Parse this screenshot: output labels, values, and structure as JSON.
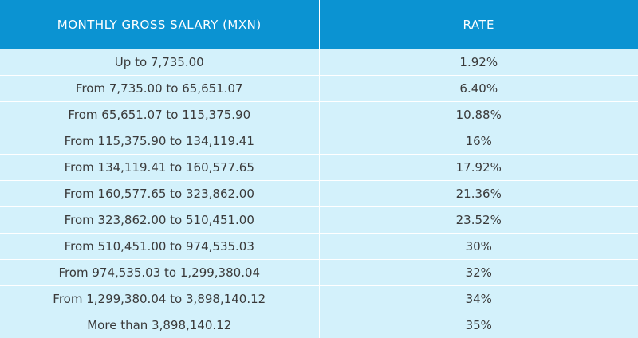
{
  "table": {
    "header": [
      "MONTHLY GROSS SALARY (MXN)",
      "RATE"
    ],
    "rows": [
      [
        "Up to 7,735.00",
        "1.92%"
      ],
      [
        "From 7,735.00 to 65,651.07",
        "6.40%"
      ],
      [
        "From 65,651.07 to 115,375.90",
        "10.88%"
      ],
      [
        "From 115,375.90 to 134,119.41",
        "16%"
      ],
      [
        "From 134,119.41 to 160,577.65",
        "17.92%"
      ],
      [
        "From 160,577.65 to 323,862.00",
        "21.36%"
      ],
      [
        "From 323,862.00 to 510,451.00",
        "23.52%"
      ],
      [
        "From 510,451.00 to 974,535.03",
        "30%"
      ],
      [
        "From 974,535.03 to 1,299,380.04",
        "32%"
      ],
      [
        "From 1,299,380.04 to 3,898,140.12",
        "34%"
      ],
      [
        "More than 3,898,140.12",
        "35%"
      ]
    ]
  }
}
